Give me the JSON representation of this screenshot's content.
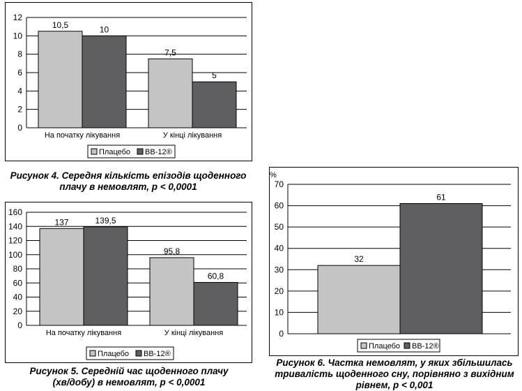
{
  "colors": {
    "placebo": "#c4c4c4",
    "bb12": "#5f5f61",
    "grid": "#000000"
  },
  "figures": [
    {
      "caption_line1": "Рисунок 4. Середня кількість епізодів щоденного",
      "caption_line2": "плачу в немовлят, р < 0,0001"
    },
    {
      "caption_line1": "Рисунок 5. Середній час щоденного плачу",
      "caption_line2": "(хв/добу) в немовлят, р < 0,0001"
    },
    {
      "caption_line1": "Рисунок 6. Частка немовлят, у яких збільшилась",
      "caption_line2": "тривалість щоденного сну, порівняно з вихідним",
      "caption_line3": "рівнем, р < 0,001"
    }
  ],
  "chart_data": [
    {
      "type": "bar",
      "categories": [
        "На початку лікування",
        "У кінці лікування"
      ],
      "series": [
        {
          "name": "Плацебо",
          "values": [
            10.5,
            7.5
          ],
          "labels": [
            "10,5",
            "7,5"
          ]
        },
        {
          "name": "BB-12®",
          "values": [
            10,
            5
          ],
          "labels": [
            "10",
            "5"
          ]
        }
      ],
      "ylim": [
        0,
        12
      ],
      "yticks": [
        0,
        2,
        4,
        6,
        8,
        10,
        12
      ],
      "ytick_labels": [
        "0",
        "2",
        "4",
        "6",
        "8",
        "10",
        "12"
      ],
      "ylabel": "",
      "xlabel": "",
      "grid": true,
      "legend": "bottom"
    },
    {
      "type": "bar",
      "categories": [
        "На початку лікування",
        "У кінці лікування"
      ],
      "series": [
        {
          "name": "Плацебо",
          "values": [
            137,
            95.8
          ],
          "labels": [
            "137",
            "95,8"
          ]
        },
        {
          "name": "BB-12®",
          "values": [
            139.5,
            60.8
          ],
          "labels": [
            "139,5",
            "60,8"
          ]
        }
      ],
      "ylim": [
        0,
        160
      ],
      "yticks": [
        0,
        20,
        40,
        60,
        80,
        100,
        120,
        140,
        160
      ],
      "ytick_labels": [
        "0",
        "20",
        "40",
        "60",
        "80",
        "100",
        "120",
        "140",
        "160"
      ],
      "ylabel": "",
      "xlabel": "",
      "grid": true,
      "legend": "bottom"
    },
    {
      "type": "bar",
      "categories": [
        ""
      ],
      "series": [
        {
          "name": "Плацебо",
          "values": [
            32
          ],
          "labels": [
            "32"
          ]
        },
        {
          "name": "BB-12®",
          "values": [
            61
          ],
          "labels": [
            "61"
          ]
        }
      ],
      "ylim": [
        0,
        70
      ],
      "yticks": [
        0,
        10,
        20,
        30,
        40,
        50,
        60,
        70
      ],
      "ytick_labels": [
        "0",
        "10",
        "20",
        "30",
        "40",
        "50",
        "60",
        "70"
      ],
      "ylabel": "%",
      "xlabel": "",
      "grid": true,
      "legend": "bottom"
    }
  ]
}
